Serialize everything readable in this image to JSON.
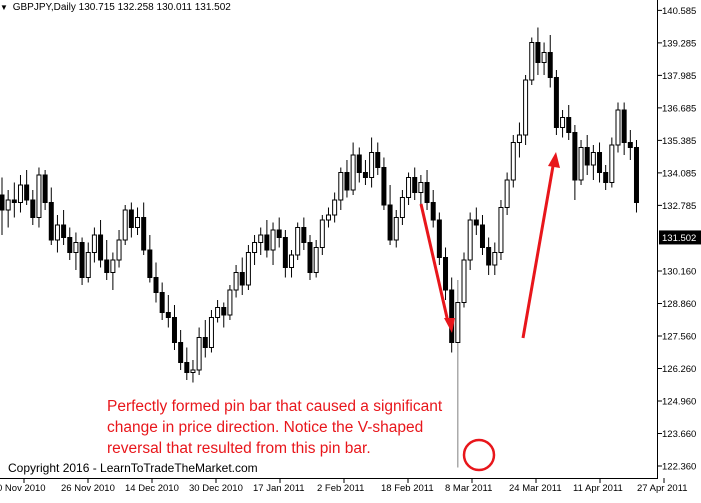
{
  "header": {
    "symbol": "GBPJPY,Daily",
    "ohlc": "130.715 132.258 130.011 131.502"
  },
  "annotation": {
    "lines": [
      "Perfectly formed pin bar that caused a significant",
      "change in price direction. Notice the V-shaped",
      "reversal that resulted from this pin bar."
    ]
  },
  "copyright": "Copyright 2016 - LearnToTradeTheMarket.com",
  "colors": {
    "annotation": "#e8161b",
    "candle": "#000000",
    "background": "#ffffff",
    "current_price_bg": "#000000"
  },
  "chart_data": {
    "type": "candlestick",
    "title": "GBPJPY,Daily",
    "symbol": "GBPJPY",
    "timeframe": "Daily",
    "current_price": "131.502",
    "y_ticks": [
      "140.585",
      "139.285",
      "137.985",
      "136.685",
      "135.385",
      "134.085",
      "132.785",
      "131.502",
      "130.160",
      "128.860",
      "127.560",
      "126.260",
      "124.960",
      "123.660",
      "122.360"
    ],
    "x_ticks": [
      "0 Nov 2010",
      "26 Nov 2010",
      "14 Dec 2010",
      "30 Dec 2010",
      "17 Jan 2011",
      "2 Feb 2011",
      "18 Feb 2011",
      "8 Mar 2011",
      "24 Mar 2011",
      "11 Apr 2011",
      "27 Apr 2011"
    ],
    "ylim": [
      122.0,
      140.8
    ],
    "grid": false,
    "legend": "none",
    "highlight": "pin bar (circled) near 8 Mar 2011",
    "series": [
      {
        "ohlc": [
          [
            133.2,
            133.9,
            131.6,
            132.6
          ],
          [
            132.6,
            133.4,
            131.9,
            133.0
          ],
          [
            133.0,
            133.7,
            132.3,
            132.9
          ],
          [
            132.9,
            134.0,
            132.5,
            133.6
          ],
          [
            133.6,
            134.2,
            132.8,
            133.0
          ],
          [
            133.0,
            133.4,
            132.0,
            132.3
          ],
          [
            132.3,
            134.3,
            131.9,
            134.0
          ],
          [
            134.0,
            134.2,
            132.6,
            132.9
          ],
          [
            132.9,
            133.5,
            131.2,
            131.4
          ],
          [
            131.4,
            132.4,
            130.9,
            132.0
          ],
          [
            132.0,
            132.6,
            131.2,
            131.5
          ],
          [
            131.5,
            131.9,
            130.6,
            130.9
          ],
          [
            130.9,
            131.7,
            130.2,
            131.3
          ],
          [
            131.3,
            131.5,
            129.6,
            129.9
          ],
          [
            129.9,
            131.3,
            129.7,
            130.9
          ],
          [
            130.9,
            131.9,
            130.5,
            131.6
          ],
          [
            131.6,
            132.2,
            130.3,
            130.6
          ],
          [
            130.6,
            131.4,
            129.8,
            130.1
          ],
          [
            130.1,
            130.9,
            129.4,
            130.6
          ],
          [
            130.6,
            131.8,
            130.3,
            131.4
          ],
          [
            131.4,
            132.8,
            131.2,
            132.6
          ],
          [
            132.6,
            132.9,
            131.5,
            131.9
          ],
          [
            131.9,
            132.7,
            131.6,
            132.3
          ],
          [
            132.3,
            132.9,
            130.8,
            131.0
          ],
          [
            131.0,
            131.6,
            129.7,
            129.9
          ],
          [
            129.9,
            130.5,
            128.9,
            129.3
          ],
          [
            129.3,
            129.7,
            128.2,
            128.5
          ],
          [
            128.5,
            129.2,
            127.9,
            128.3
          ],
          [
            128.3,
            128.8,
            127.0,
            127.3
          ],
          [
            127.3,
            127.8,
            126.2,
            126.5
          ],
          [
            126.5,
            127.1,
            125.8,
            126.1
          ],
          [
            126.1,
            126.6,
            125.7,
            126.2
          ],
          [
            126.2,
            127.9,
            126.0,
            127.5
          ],
          [
            127.5,
            128.2,
            126.7,
            127.1
          ],
          [
            127.1,
            128.6,
            126.9,
            128.3
          ],
          [
            128.3,
            129.0,
            128.1,
            128.7
          ],
          [
            128.7,
            128.9,
            127.9,
            128.4
          ],
          [
            128.4,
            129.6,
            128.2,
            129.4
          ],
          [
            129.4,
            130.4,
            129.1,
            130.1
          ],
          [
            130.1,
            130.7,
            129.2,
            129.6
          ],
          [
            129.6,
            131.2,
            129.4,
            130.9
          ],
          [
            130.9,
            131.6,
            130.4,
            131.3
          ],
          [
            131.3,
            131.9,
            130.8,
            131.6
          ],
          [
            131.6,
            132.2,
            130.7,
            131.0
          ],
          [
            131.0,
            132.1,
            130.4,
            131.8
          ],
          [
            131.8,
            132.3,
            131.1,
            131.5
          ],
          [
            131.5,
            131.8,
            129.9,
            130.3
          ],
          [
            130.3,
            131.0,
            129.9,
            130.8
          ],
          [
            130.8,
            132.1,
            130.6,
            131.9
          ],
          [
            131.9,
            132.3,
            131.0,
            131.3
          ],
          [
            131.3,
            131.6,
            129.8,
            130.1
          ],
          [
            130.1,
            131.4,
            129.9,
            131.1
          ],
          [
            131.1,
            132.4,
            130.8,
            132.2
          ],
          [
            132.2,
            132.7,
            131.9,
            132.4
          ],
          [
            132.4,
            133.3,
            132.1,
            133.0
          ],
          [
            133.0,
            134.3,
            132.6,
            134.1
          ],
          [
            134.1,
            134.6,
            133.1,
            133.4
          ],
          [
            133.4,
            135.3,
            133.2,
            134.8
          ],
          [
            134.8,
            135.1,
            133.7,
            134.1
          ],
          [
            134.1,
            134.6,
            133.6,
            133.9
          ],
          [
            133.9,
            135.5,
            133.5,
            134.9
          ],
          [
            134.9,
            135.3,
            134.0,
            134.3
          ],
          [
            134.3,
            134.7,
            132.6,
            132.8
          ],
          [
            132.8,
            133.6,
            131.2,
            131.4
          ],
          [
            131.4,
            132.6,
            131.1,
            132.3
          ],
          [
            132.3,
            133.4,
            132.0,
            133.1
          ],
          [
            133.1,
            134.1,
            132.8,
            133.9
          ],
          [
            133.9,
            134.3,
            133.0,
            133.3
          ],
          [
            133.3,
            134.0,
            132.8,
            133.7
          ],
          [
            133.7,
            134.2,
            132.6,
            132.9
          ],
          [
            132.9,
            133.4,
            131.9,
            132.2
          ],
          [
            132.2,
            132.5,
            130.4,
            130.7
          ],
          [
            130.7,
            131.1,
            129.0,
            129.4
          ],
          [
            129.4,
            129.9,
            126.9,
            127.3
          ],
          [
            127.3,
            129.8,
            122.3,
            128.9
          ],
          [
            128.9,
            130.9,
            128.7,
            130.6
          ],
          [
            130.6,
            132.5,
            130.2,
            132.2
          ],
          [
            132.2,
            132.7,
            131.6,
            132.0
          ],
          [
            132.0,
            132.4,
            130.8,
            131.1
          ],
          [
            131.1,
            131.5,
            130.0,
            130.4
          ],
          [
            130.4,
            131.3,
            130.0,
            130.9
          ],
          [
            130.9,
            133.0,
            130.6,
            132.7
          ],
          [
            132.7,
            134.1,
            132.4,
            133.8
          ],
          [
            133.8,
            135.6,
            133.5,
            135.3
          ],
          [
            135.3,
            136.1,
            134.7,
            135.6
          ],
          [
            135.6,
            138.0,
            135.2,
            137.8
          ],
          [
            137.8,
            139.5,
            137.6,
            139.3
          ],
          [
            139.3,
            139.9,
            138.0,
            138.5
          ],
          [
            138.5,
            139.3,
            138.0,
            138.9
          ],
          [
            138.9,
            139.6,
            137.5,
            137.9
          ],
          [
            137.9,
            138.2,
            135.6,
            135.9
          ],
          [
            135.9,
            136.6,
            135.5,
            136.3
          ],
          [
            136.3,
            136.8,
            135.4,
            135.7
          ],
          [
            135.7,
            136.0,
            133.0,
            133.8
          ],
          [
            133.8,
            135.4,
            133.6,
            135.1
          ],
          [
            135.1,
            135.6,
            134.0,
            134.4
          ],
          [
            134.4,
            135.2,
            133.8,
            134.9
          ],
          [
            134.9,
            135.3,
            133.7,
            134.1
          ],
          [
            134.1,
            134.4,
            133.4,
            133.7
          ],
          [
            133.7,
            135.5,
            133.5,
            135.2
          ],
          [
            135.2,
            136.9,
            134.9,
            136.6
          ],
          [
            136.6,
            136.9,
            134.8,
            135.3
          ],
          [
            135.3,
            135.8,
            134.6,
            135.1
          ],
          [
            135.1,
            135.4,
            132.5,
            132.9
          ]
        ]
      }
    ]
  }
}
